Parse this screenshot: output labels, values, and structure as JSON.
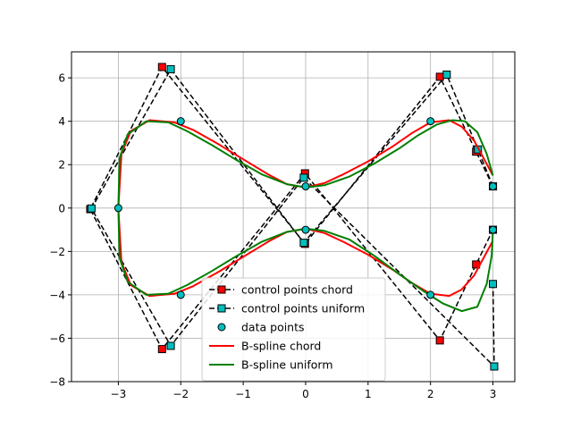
{
  "chart_data": {
    "type": "line",
    "title": "",
    "xlabel": "",
    "ylabel": "",
    "xlim": [
      -3.75,
      3.35
    ],
    "ylim": [
      -8,
      7.2
    ],
    "grid": true,
    "legend_position": "lower-center",
    "x_ticks": [
      -3,
      -2,
      -1,
      0,
      1,
      2,
      3
    ],
    "x_tick_labels": [
      "−3",
      "−2",
      "−1",
      "0",
      "1",
      "2",
      "3"
    ],
    "y_ticks": [
      -8,
      -6,
      -4,
      -2,
      0,
      2,
      4,
      6
    ],
    "y_tick_labels": [
      "−8",
      "−6",
      "−4",
      "−2",
      "0",
      "2",
      "4",
      "6"
    ],
    "series": [
      {
        "name": "control points chord",
        "style": "dashed-markers",
        "color": "#000000",
        "marker": "square",
        "marker_color": "#ff0000",
        "x": [
          3.0,
          2.73,
          2.15,
          -0.01,
          -2.3,
          -3.45,
          -2.3,
          -0.01,
          2.15,
          2.73,
          3.0
        ],
        "y": [
          1.0,
          2.6,
          6.05,
          -1.65,
          6.5,
          -0.05,
          -6.5,
          1.6,
          -6.1,
          -2.6,
          -1.0
        ]
      },
      {
        "name": "control points uniform",
        "style": "dashed-markers",
        "color": "#000000",
        "marker": "square",
        "marker_color": "#00bfbf",
        "x": [
          3.0,
          2.76,
          2.26,
          -0.03,
          -2.16,
          -3.43,
          -2.16,
          -0.03,
          3.02,
          3.0
        ],
        "y": [
          1.0,
          2.7,
          6.15,
          -1.6,
          6.4,
          -0.02,
          -6.35,
          1.4,
          -7.3,
          -3.5
        ]
      },
      {
        "name": "data points",
        "style": "markers",
        "marker": "circle",
        "marker_color": "#00bfbf",
        "x": [
          3.0,
          2.0,
          0.0,
          -2.0,
          -3.0,
          -2.0,
          0.0,
          2.0,
          3.0
        ],
        "y": [
          1.0,
          4.0,
          1.0,
          4.0,
          0.0,
          -4.0,
          -1.0,
          -4.0,
          -1.0
        ]
      },
      {
        "name": "B-spline chord",
        "style": "line",
        "color": "#ff0000",
        "x": [
          3.0,
          2.85,
          2.7,
          2.5,
          2.3,
          2.0,
          1.7,
          1.4,
          1.0,
          0.6,
          0.3,
          0.0,
          -0.3,
          -0.6,
          -1.0,
          -1.4,
          -1.8,
          -2.1,
          -2.5,
          -2.8,
          -2.95,
          -3.0,
          -2.95,
          -2.8,
          -2.5,
          -2.1,
          -1.8,
          -1.4,
          -1.0,
          -0.6,
          -0.3,
          0.0,
          0.3,
          0.6,
          1.0,
          1.4,
          1.7,
          2.0,
          2.3,
          2.5,
          2.7,
          2.85,
          3.0
        ],
        "y": [
          1.5,
          2.3,
          3.1,
          3.75,
          4.05,
          3.95,
          3.45,
          2.85,
          2.15,
          1.55,
          1.15,
          0.95,
          1.1,
          1.55,
          2.25,
          2.95,
          3.6,
          3.95,
          4.05,
          3.55,
          2.5,
          0.0,
          -2.5,
          -3.55,
          -4.05,
          -3.95,
          -3.6,
          -2.95,
          -2.25,
          -1.55,
          -1.1,
          -0.95,
          -1.15,
          -1.55,
          -2.15,
          -2.85,
          -3.45,
          -3.95,
          -4.05,
          -3.75,
          -3.1,
          -2.3,
          -1.5
        ]
      },
      {
        "name": "B-spline uniform",
        "style": "line",
        "color": "#008000",
        "x": [
          3.0,
          2.9,
          2.75,
          2.55,
          2.35,
          2.1,
          1.8,
          1.5,
          1.1,
          0.7,
          0.3,
          0.0,
          -0.3,
          -0.7,
          -1.1,
          -1.5,
          -1.9,
          -2.2,
          -2.55,
          -2.85,
          -2.98,
          -3.0,
          -2.98,
          -2.85,
          -2.55,
          -2.2,
          -1.9,
          -1.5,
          -1.1,
          -0.7,
          -0.3,
          0.0,
          0.3,
          0.7,
          1.1,
          1.5,
          1.9,
          2.2,
          2.5,
          2.75,
          2.9,
          2.98,
          3.0
        ],
        "y": [
          1.5,
          2.5,
          3.5,
          4.0,
          4.05,
          3.85,
          3.35,
          2.75,
          2.05,
          1.45,
          1.05,
          0.95,
          1.1,
          1.55,
          2.2,
          2.9,
          3.55,
          3.95,
          4.0,
          3.4,
          2.3,
          0.0,
          -2.3,
          -3.4,
          -4.0,
          -3.95,
          -3.55,
          -2.9,
          -2.2,
          -1.55,
          -1.1,
          -0.95,
          -1.05,
          -1.45,
          -2.2,
          -3.05,
          -3.85,
          -4.4,
          -4.75,
          -4.55,
          -3.5,
          -2.2,
          -1.0
        ]
      }
    ]
  }
}
